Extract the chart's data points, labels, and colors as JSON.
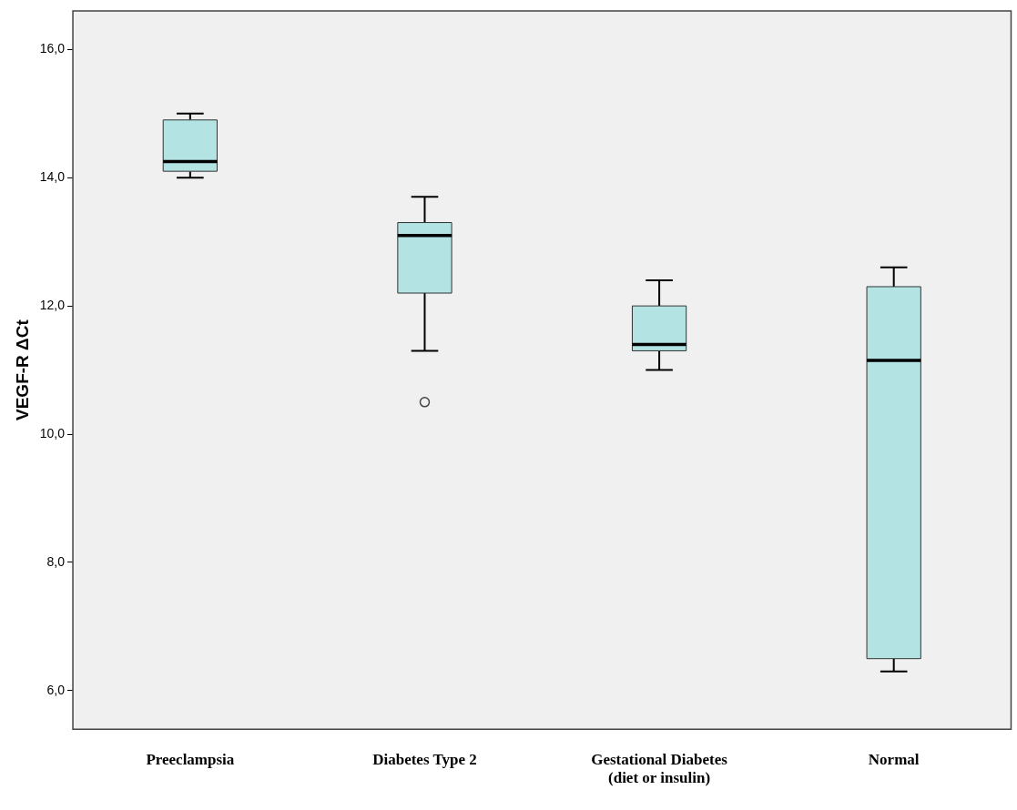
{
  "chart_data": {
    "type": "box",
    "ylabel": "VEGF-R ΔCt",
    "categories": [
      "Preeclampsia",
      "Diabetes Type 2",
      "Gestational Diabetes (diet or insulin)",
      "Normal"
    ],
    "boxes": [
      {
        "low": 14.0,
        "q1": 14.1,
        "median": 14.25,
        "q3": 14.9,
        "high": 15.0
      },
      {
        "low": 11.3,
        "q1": 12.2,
        "median": 13.1,
        "q3": 13.3,
        "high": 13.7,
        "outliers": [
          10.5
        ]
      },
      {
        "low": 11.0,
        "q1": 11.3,
        "median": 11.4,
        "q3": 12.0,
        "high": 12.4
      },
      {
        "low": 6.3,
        "q1": 6.5,
        "median": 11.15,
        "q3": 12.3,
        "high": 12.6
      }
    ],
    "color": "#b3e3e3",
    "ylim": [
      5.4,
      16.6
    ],
    "yticks": [
      {
        "value": 6,
        "label": "6,0"
      },
      {
        "value": 8,
        "label": "8,0"
      },
      {
        "value": 10,
        "label": "10,0"
      },
      {
        "value": 12,
        "label": "12,0"
      },
      {
        "value": 14,
        "label": "14,0"
      },
      {
        "value": 16,
        "label": "16,0"
      }
    ],
    "grid": false,
    "legend": false,
    "marker": "circle"
  }
}
